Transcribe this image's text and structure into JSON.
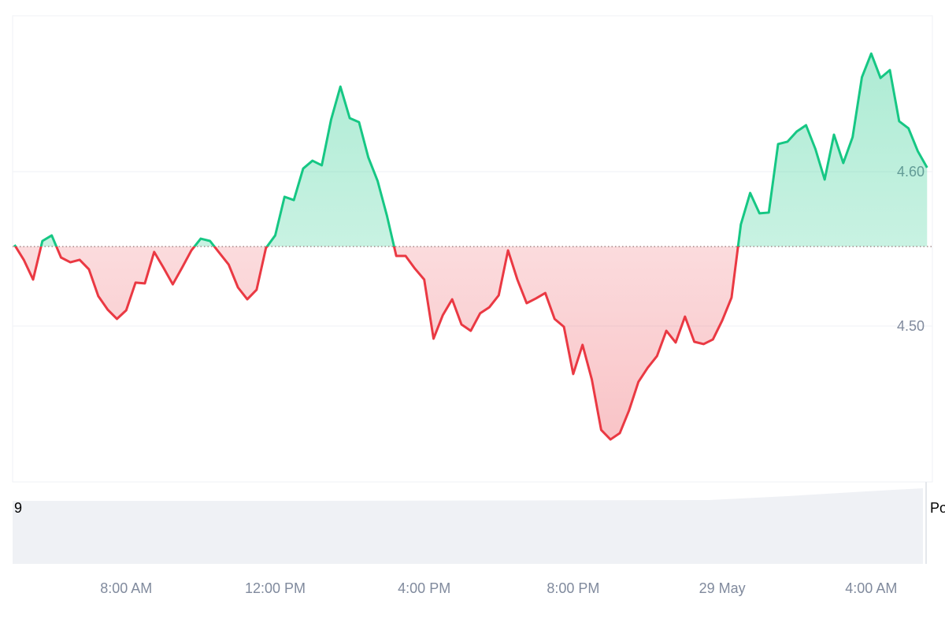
{
  "chart_data": {
    "type": "line",
    "x": [
      5,
      5.25,
      5.5,
      5.75,
      6,
      6.25,
      6.5,
      6.75,
      7,
      7.25,
      7.5,
      7.75,
      8,
      8.25,
      8.5,
      8.75,
      9,
      9.25,
      9.5,
      9.75,
      10,
      10.25,
      10.5,
      10.75,
      11,
      11.25,
      11.5,
      11.75,
      12,
      12.25,
      12.5,
      12.75,
      13,
      13.25,
      13.5,
      13.75,
      14,
      14.25,
      14.5,
      14.75,
      15,
      15.25,
      15.5,
      15.75,
      16,
      16.25,
      16.5,
      16.75,
      17,
      17.25,
      17.5,
      17.75,
      18,
      18.25,
      18.5,
      18.75,
      19,
      19.25,
      19.5,
      19.75,
      20,
      20.25,
      20.5,
      20.75,
      21,
      21.25,
      21.5,
      21.75,
      22,
      22.25,
      22.5,
      22.75,
      23,
      23.25,
      23.5,
      23.75,
      24,
      24.25,
      24.5,
      24.75,
      25,
      25.25,
      25.5,
      25.75,
      26,
      26.25,
      26.5,
      26.75,
      27,
      27.25,
      27.5,
      27.75,
      28,
      28.25,
      28.5,
      28.75,
      29,
      29.25,
      29.5
    ],
    "values": [
      4.5526,
      4.5429,
      4.5301,
      4.5551,
      4.5587,
      4.5444,
      4.5413,
      4.5429,
      4.5367,
      4.5194,
      4.5107,
      4.5046,
      4.5102,
      4.5281,
      4.5276,
      4.548,
      4.5378,
      4.527,
      4.5378,
      4.549,
      4.5566,
      4.5551,
      4.5474,
      4.5398,
      4.525,
      4.5173,
      4.5235,
      4.5505,
      4.5587,
      4.5837,
      4.5816,
      4.602,
      4.6071,
      4.6041,
      4.6337,
      4.6551,
      4.6347,
      4.6321,
      4.6092,
      4.5939,
      4.5714,
      4.5454,
      4.5454,
      4.5372,
      4.5301,
      4.4918,
      4.5071,
      4.5173,
      4.501,
      4.4969,
      4.5082,
      4.5122,
      4.5199,
      4.549,
      4.5301,
      4.5148,
      4.5179,
      4.5214,
      4.5046,
      4.4995,
      4.4689,
      4.4878,
      4.4653,
      4.4327,
      4.4265,
      4.4306,
      4.4454,
      4.4638,
      4.473,
      4.4806,
      4.4969,
      4.4893,
      4.5061,
      4.4898,
      4.4883,
      4.4913,
      4.5036,
      4.5184,
      4.5658,
      4.5862,
      4.573,
      4.5735,
      4.6179,
      4.6194,
      4.626,
      4.6301,
      4.6148,
      4.5949,
      4.624,
      4.6056,
      4.6224,
      4.6612,
      4.6765,
      4.6607,
      4.6658,
      4.6327,
      4.6281,
      4.6133,
      4.6026
    ],
    "baseline": 4.5515,
    "up_color": "#16c784",
    "down_color": "#ea3943",
    "xlim": [
      4.95,
      29.6
    ],
    "xticks": [
      {
        "value": 8,
        "label": "8:00 AM"
      },
      {
        "value": 12,
        "label": "12:00 PM"
      },
      {
        "value": 16,
        "label": "4:00 PM"
      },
      {
        "value": 20,
        "label": "8:00 PM"
      },
      {
        "value": 24,
        "label": "29 May"
      },
      {
        "value": 28,
        "label": "4:00 AM"
      }
    ],
    "ylim": [
      4.4,
      4.7
    ],
    "yticks": [
      {
        "value": 4.5,
        "label": "4.50"
      },
      {
        "value": 4.6,
        "label": "4.60"
      }
    ],
    "grid": true,
    "edge_labels": [
      "9",
      "Po"
    ]
  }
}
